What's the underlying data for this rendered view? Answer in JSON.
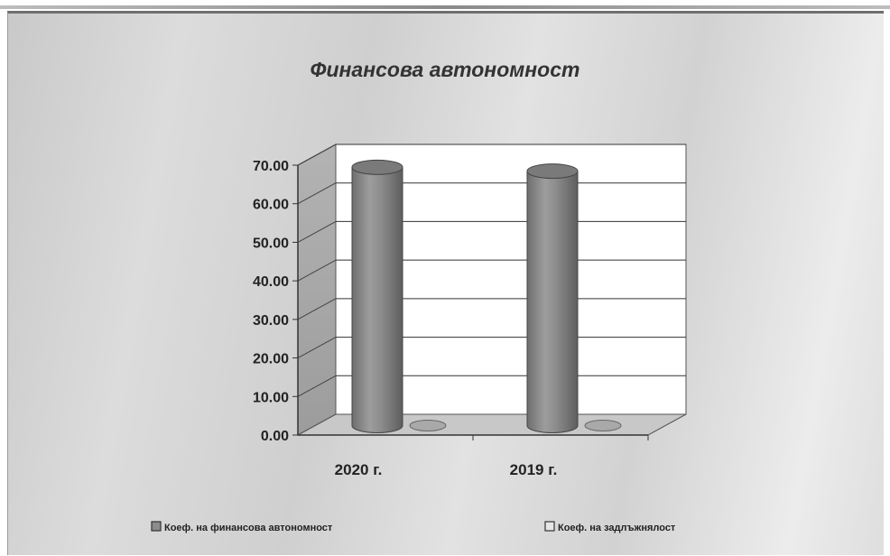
{
  "chart_data": {
    "type": "bar",
    "title": "Финансова автономност",
    "categories": [
      "2020 г.",
      "2019 г."
    ],
    "series": [
      {
        "name": "Коеф. на финансова автономност",
        "values": [
          67.0,
          66.0
        ],
        "color": "#8c8c8c"
      },
      {
        "name": "Коеф. на задлъжнялост",
        "values": [
          0.5,
          0.5
        ],
        "color": "#e6e6e6"
      }
    ],
    "yticks": [
      "0.00",
      "10.00",
      "20.00",
      "30.00",
      "40.00",
      "50.00",
      "60.00",
      "70.00"
    ],
    "ylim": [
      0,
      70
    ],
    "grid": true,
    "legend": "bottom"
  }
}
